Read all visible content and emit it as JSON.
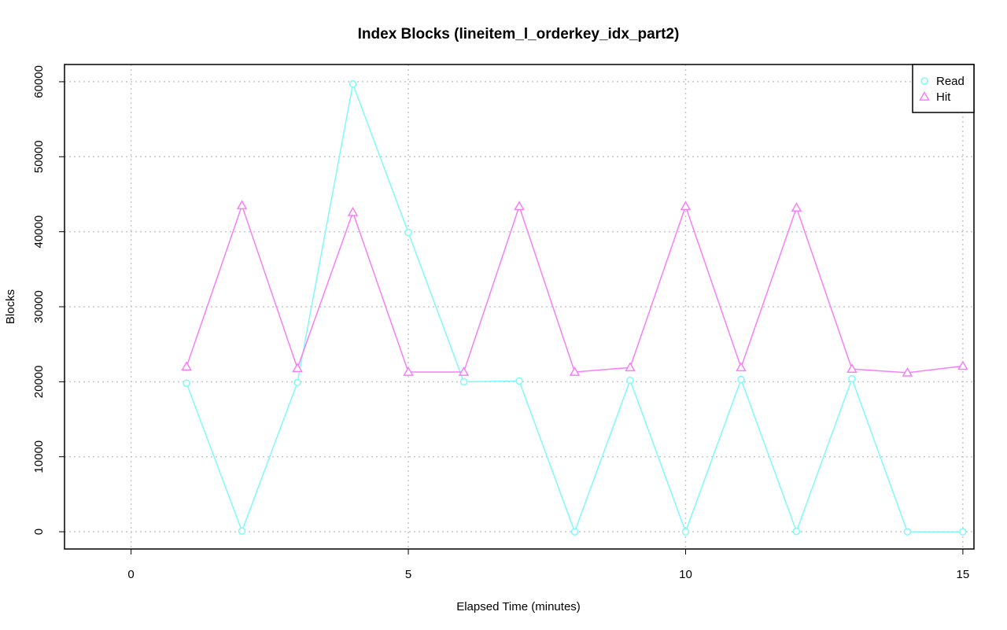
{
  "chart_data": {
    "type": "line",
    "title": "Index Blocks (lineitem_l_orderkey_idx_part2)",
    "xlabel": "Elapsed Time (minutes)",
    "ylabel": "Blocks",
    "xlim": [
      -1.2,
      15.2
    ],
    "ylim": [
      -2300,
      62300
    ],
    "x_ticks": [
      0,
      5,
      10,
      15
    ],
    "y_ticks": [
      0,
      10000,
      20000,
      30000,
      40000,
      50000,
      60000
    ],
    "x_tick_labels": [
      "0",
      "5",
      "10",
      "15"
    ],
    "y_tick_labels": [
      "0",
      "10000",
      "20000",
      "30000",
      "40000",
      "50000",
      "60000"
    ],
    "grid": true,
    "legend_position": "top-right",
    "x": [
      1,
      2,
      3,
      4,
      5,
      6,
      7,
      8,
      9,
      10,
      11,
      12,
      13,
      14,
      15
    ],
    "series": [
      {
        "name": "Read",
        "color": "#7ff9f9",
        "marker": "circle",
        "values": [
          19800,
          100,
          19900,
          59700,
          39900,
          20000,
          20100,
          0,
          20200,
          0,
          20300,
          50,
          20400,
          0,
          0
        ]
      },
      {
        "name": "Hit",
        "color": "#f77ff7",
        "marker": "triangle",
        "values": [
          22000,
          43500,
          21800,
          42600,
          21300,
          21300,
          43400,
          21300,
          21900,
          43400,
          21900,
          43200,
          21700,
          21200,
          22100
        ]
      }
    ]
  }
}
